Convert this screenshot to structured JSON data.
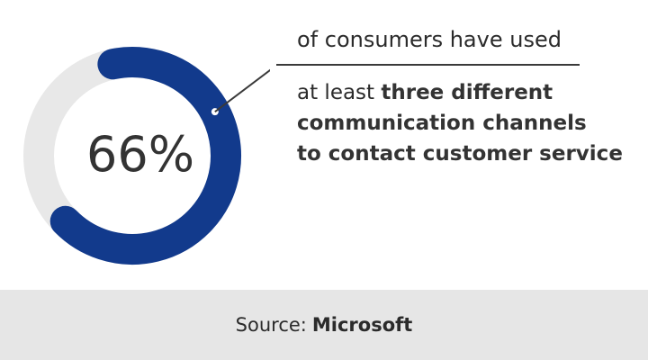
{
  "chart_data": {
    "type": "pie",
    "variant": "donut-gauge",
    "value_percent": 66,
    "value_label": "66%",
    "colors": {
      "filled": "#123a8c",
      "track": "#e8e8e8",
      "value_text": "#333333"
    }
  },
  "headline": {
    "lead": "of consumers have used",
    "desc_prefix": "at least ",
    "desc_bold_1": "three different",
    "desc_bold_2": "communication channels",
    "desc_bold_3": "to contact customer service"
  },
  "footer": {
    "source_label": "Source:",
    "source_name": "Microsoft"
  }
}
